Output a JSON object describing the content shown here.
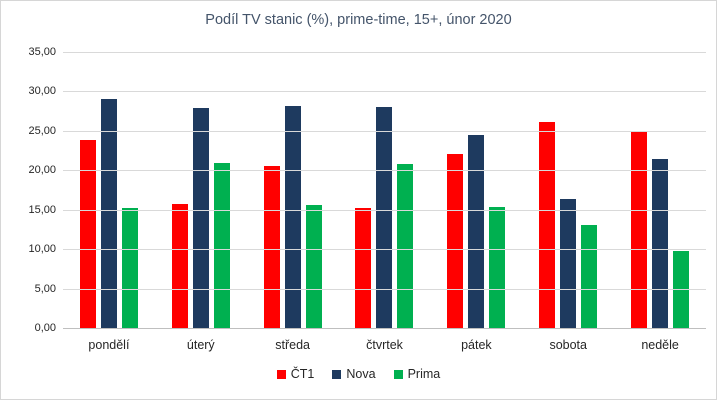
{
  "chart_data": {
    "type": "bar",
    "title": "Podíl TV stanic (%), prime-time, 15+, únor 2020",
    "categories": [
      "pondělí",
      "úterý",
      "středa",
      "čtvrtek",
      "pátek",
      "sobota",
      "neděle"
    ],
    "series": [
      {
        "name": "ČT1",
        "color": "#ff0000",
        "values": [
          23.8,
          15.7,
          20.5,
          15.2,
          22.1,
          26.1,
          25.0
        ]
      },
      {
        "name": "Nova",
        "color": "#1e3a5f",
        "values": [
          29.1,
          27.9,
          28.2,
          28.0,
          24.5,
          16.3,
          21.4
        ]
      },
      {
        "name": "Prima",
        "color": "#00b050",
        "values": [
          15.2,
          20.9,
          15.6,
          20.8,
          15.3,
          13.1,
          9.8
        ]
      }
    ],
    "ylim": [
      0,
      35
    ],
    "ytick_values": [
      35,
      30,
      25,
      20,
      15,
      10,
      5,
      0
    ],
    "ytick_labels": [
      "35,00",
      "30,00",
      "25,00",
      "20,00",
      "15,00",
      "10,00",
      "5,00",
      "0,00"
    ],
    "grid": true,
    "legend_position": "bottom",
    "xlabel": "",
    "ylabel": ""
  },
  "colors": {
    "gridline": "#d9d9d9",
    "axis_line": "#bfbfbf",
    "title_text": "#44546a",
    "label_text": "#262626",
    "chart_border": "#d6d6d6",
    "background": "#ffffff"
  }
}
